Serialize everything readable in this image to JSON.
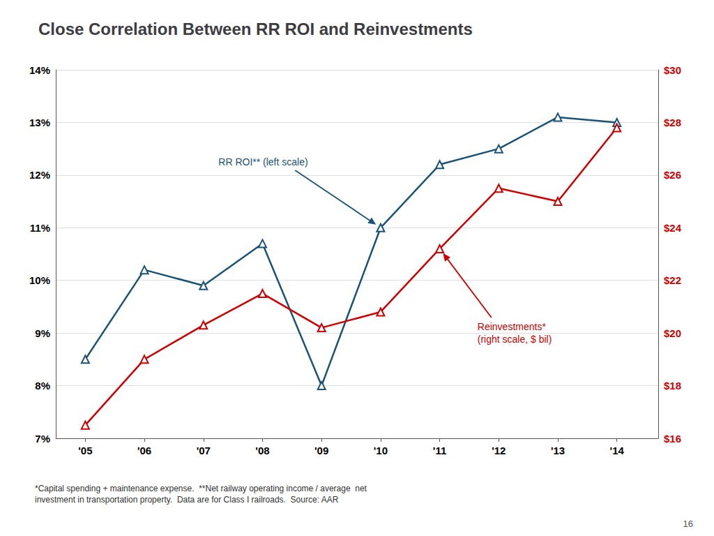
{
  "chart_data": {
    "type": "line",
    "title": "Close Correlation Between RR ROI and Reinvestments",
    "x": [
      2005,
      2006,
      2007,
      2008,
      2009,
      2010,
      2011,
      2012,
      2013,
      2014
    ],
    "xlim": [
      2004.5,
      2014.7
    ],
    "xticks": [
      {
        "value": 2005,
        "label": "'05"
      },
      {
        "value": 2006,
        "label": "'06"
      },
      {
        "value": 2007,
        "label": "'07"
      },
      {
        "value": 2008,
        "label": "'08"
      },
      {
        "value": 2009,
        "label": "'09"
      },
      {
        "value": 2010,
        "label": "'10"
      },
      {
        "value": 2011,
        "label": "'11"
      },
      {
        "value": 2012,
        "label": "'12"
      },
      {
        "value": 2013,
        "label": "'13"
      },
      {
        "value": 2014,
        "label": "'14"
      }
    ],
    "ylim": [
      0.07,
      0.14
    ],
    "yticks": [
      {
        "value": 0.07,
        "label": "7%"
      },
      {
        "value": 0.08,
        "label": "8%"
      },
      {
        "value": 0.09,
        "label": "9%"
      },
      {
        "value": 0.1,
        "label": "10%"
      },
      {
        "value": 0.11,
        "label": "11%"
      },
      {
        "value": 0.12,
        "label": "12%"
      },
      {
        "value": 0.13,
        "label": "13%"
      },
      {
        "value": 0.14,
        "label": "14%"
      }
    ],
    "y2lim": [
      16,
      30
    ],
    "y2ticks": [
      {
        "value": 16,
        "label": "$16"
      },
      {
        "value": 18,
        "label": "$18"
      },
      {
        "value": 20,
        "label": "$20"
      },
      {
        "value": 22,
        "label": "$22"
      },
      {
        "value": 24,
        "label": "$24"
      },
      {
        "value": 26,
        "label": "$26"
      },
      {
        "value": 28,
        "label": "$28"
      },
      {
        "value": 30,
        "label": "$30"
      }
    ],
    "grid": true,
    "series": [
      {
        "color": "#1a5276",
        "marker": "triangle",
        "values": [
          0.085,
          0.102,
          0.099,
          0.107,
          0.08,
          0.11,
          0.122,
          0.125,
          0.131,
          0.13
        ],
        "annotation": "RR ROI** (left scale)"
      },
      {
        "color": "#cc0000",
        "marker": "triangle",
        "axis": "y2",
        "values": [
          16.5,
          19.0,
          20.3,
          21.5,
          20.2,
          20.8,
          23.2,
          25.5,
          25.0,
          27.8
        ],
        "annotation": "Reinvestments*\n(right scale, $ bil)"
      }
    ],
    "footnote": "*Capital spending + maintenance expense.  **Net railway operating income / average  net\ninvestment in transportation property.  Data are for Class I railroads.  Source: AAR",
    "page_number": "16"
  }
}
